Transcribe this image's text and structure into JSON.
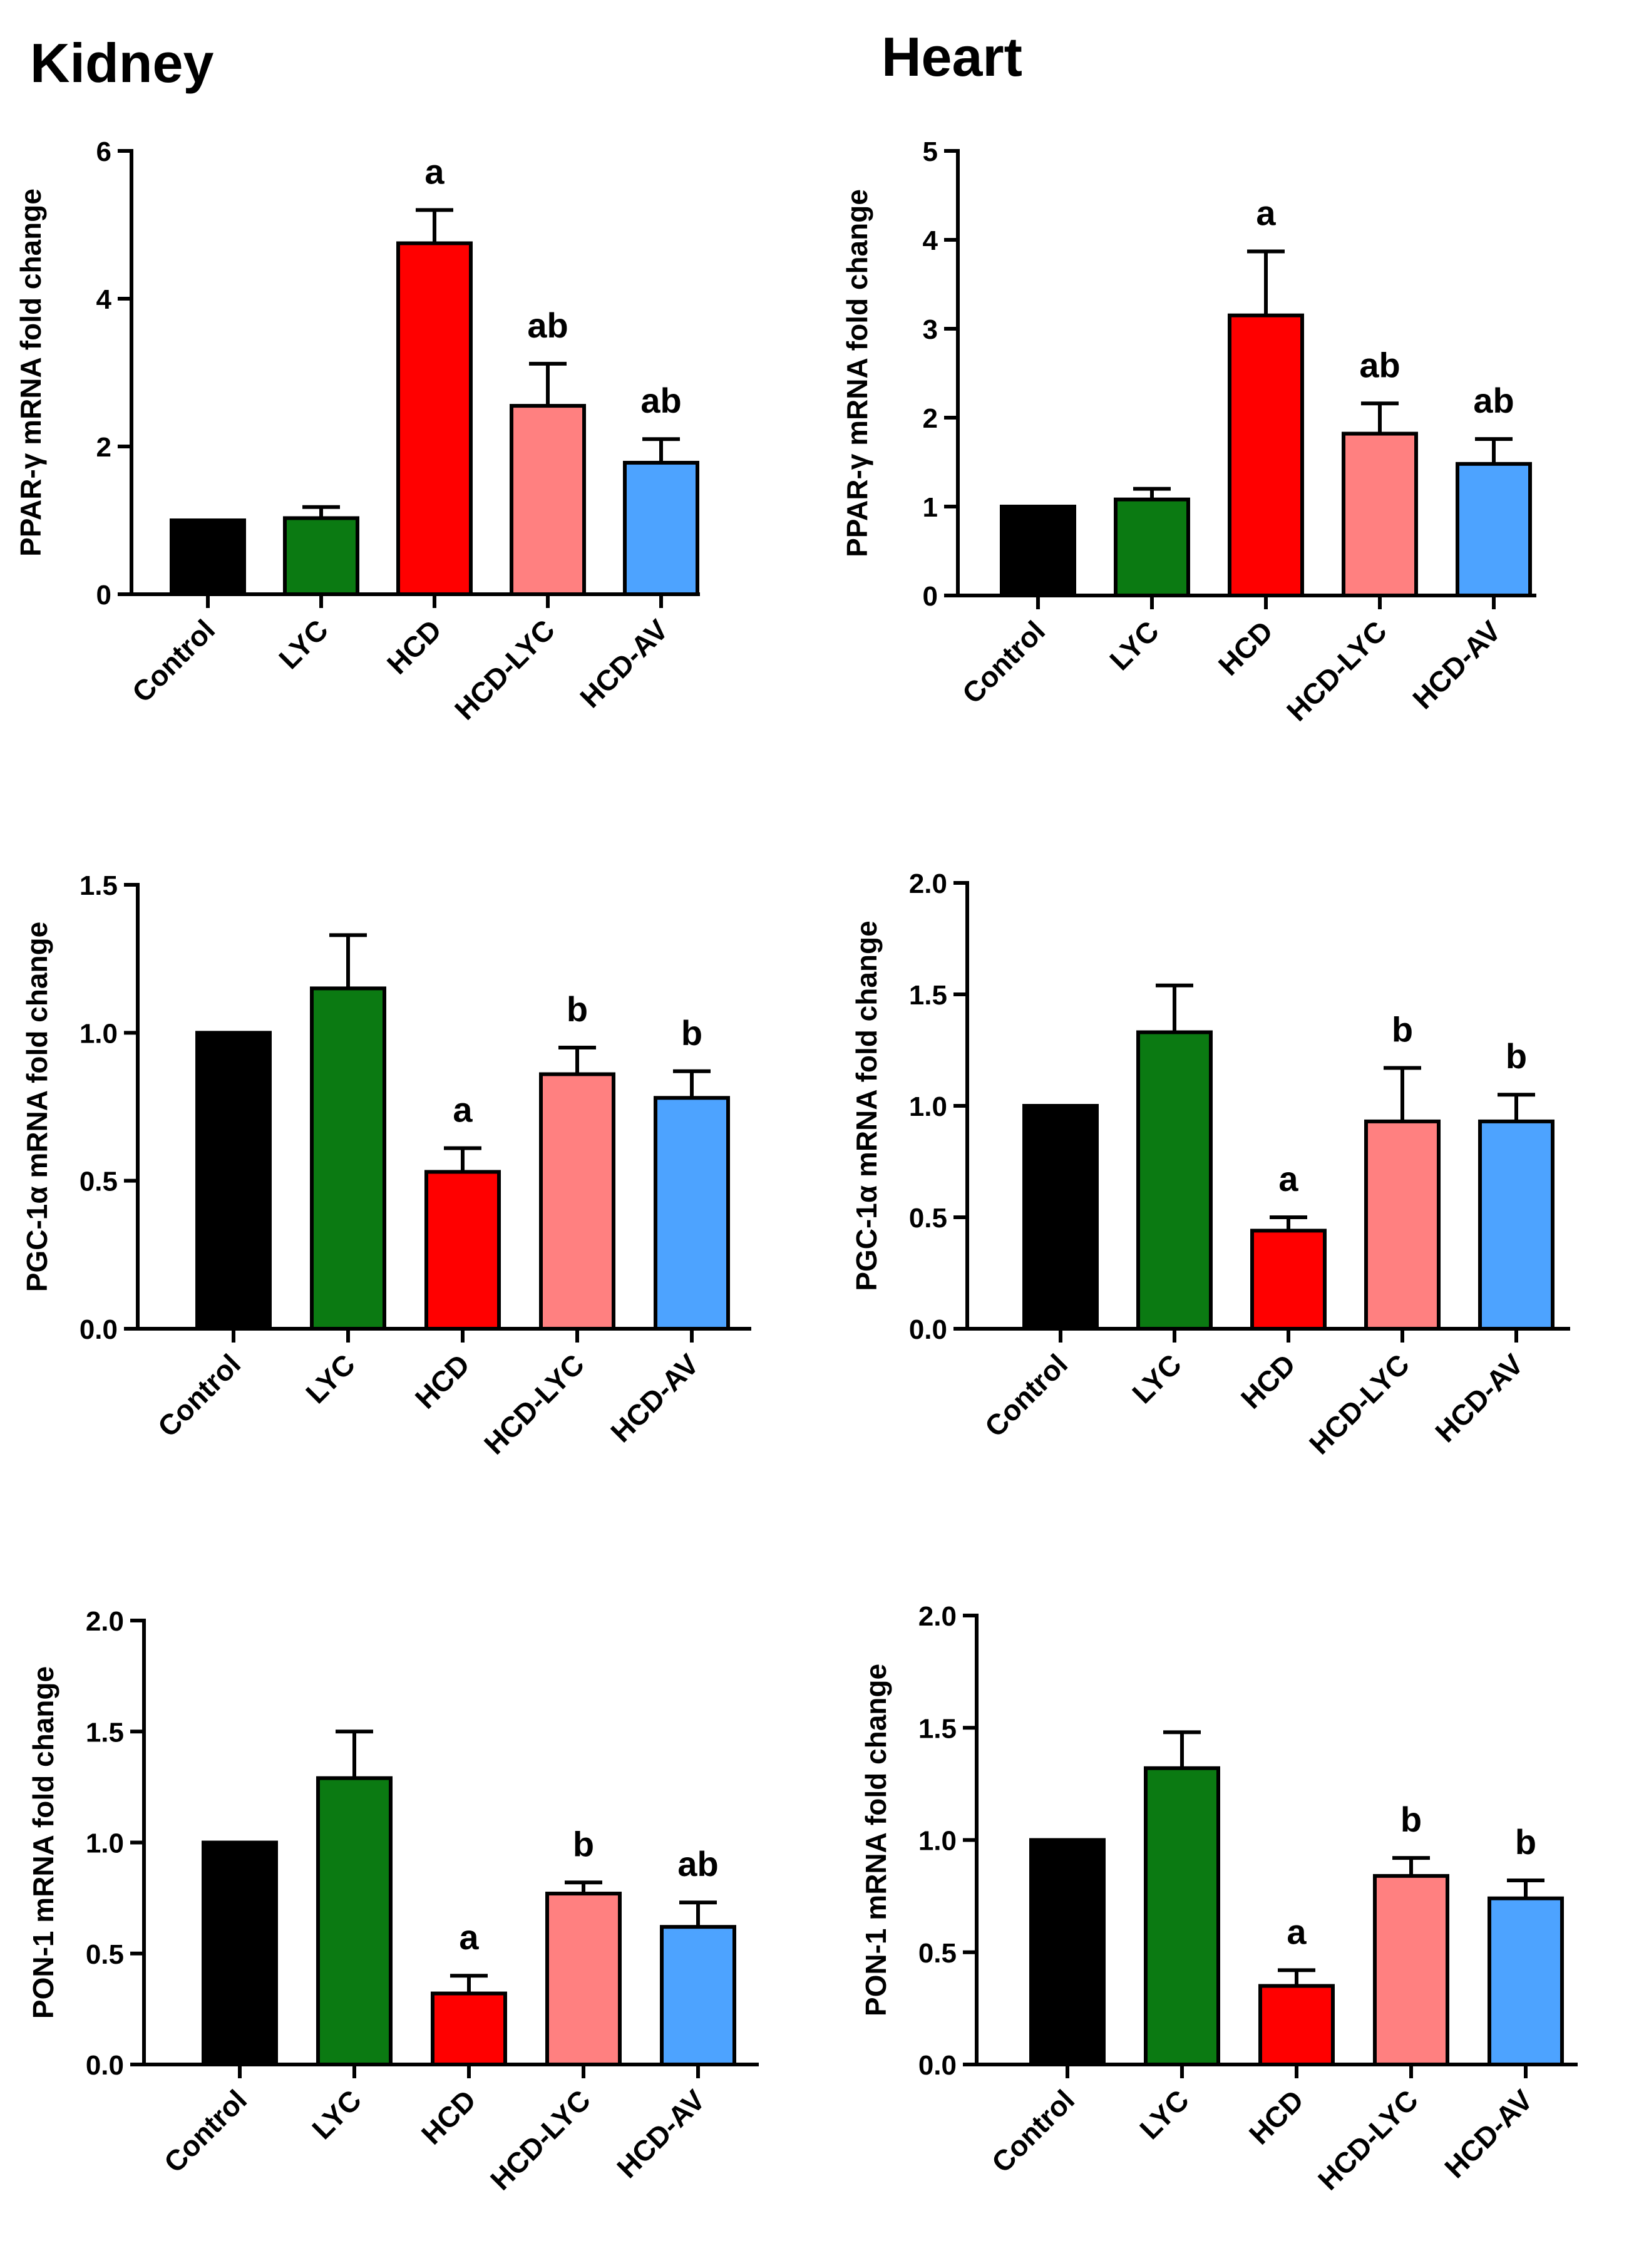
{
  "columns": [
    "Kidney",
    "Heart"
  ],
  "colors": {
    "Control": "#000000",
    "LYC": "#0b7a12",
    "HCD": "#ff0000",
    "HCD-LYC": "#ff8080",
    "HCD-AV": "#4da3ff"
  },
  "chart_data": [
    {
      "type": "bar",
      "panel": "kidney-ppar",
      "tissue": "Kidney",
      "ylabel": "PPAR-γ mRNA fold change",
      "categories": [
        "Control",
        "LYC",
        "HCD",
        "HCD-LYC",
        "HCD-AV"
      ],
      "values": [
        1.0,
        1.03,
        4.75,
        2.55,
        1.78
      ],
      "errors": [
        0,
        0.15,
        0.45,
        0.57,
        0.32
      ],
      "labels": [
        "",
        "",
        "a",
        "ab",
        "ab"
      ],
      "ylim": [
        0,
        6
      ],
      "yticks": [
        0,
        2,
        4,
        6
      ],
      "ytick_labels": [
        "0",
        "2",
        "4",
        "6"
      ]
    },
    {
      "type": "bar",
      "panel": "heart-ppar",
      "tissue": "Heart",
      "ylabel": "PPAR-γ mRNA fold change",
      "categories": [
        "Control",
        "LYC",
        "HCD",
        "HCD-LYC",
        "HCD-AV"
      ],
      "values": [
        1.0,
        1.08,
        3.15,
        1.82,
        1.48
      ],
      "errors": [
        0,
        0.12,
        0.72,
        0.34,
        0.28
      ],
      "labels": [
        "",
        "",
        "a",
        "ab",
        "ab"
      ],
      "ylim": [
        0,
        5
      ],
      "yticks": [
        0,
        1,
        2,
        3,
        4,
        5
      ],
      "ytick_labels": [
        "0",
        "1",
        "2",
        "3",
        "4",
        "5"
      ]
    },
    {
      "type": "bar",
      "panel": "kidney-pgc",
      "tissue": "Kidney",
      "ylabel": "PGC-1α mRNA fold change",
      "categories": [
        "Control",
        "LYC",
        "HCD",
        "HCD-LYC",
        "HCD-AV"
      ],
      "values": [
        1.0,
        1.15,
        0.53,
        0.86,
        0.78
      ],
      "errors": [
        0,
        0.18,
        0.08,
        0.09,
        0.09
      ],
      "labels": [
        "",
        "",
        "a",
        "b",
        "b"
      ],
      "ylim": [
        0,
        1.5
      ],
      "yticks": [
        0,
        0.5,
        1.0,
        1.5
      ],
      "ytick_labels": [
        "0.0",
        "0.5",
        "1.0",
        "1.5"
      ]
    },
    {
      "type": "bar",
      "panel": "heart-pgc",
      "tissue": "Heart",
      "ylabel": "PGC-1α mRNA fold change",
      "categories": [
        "Control",
        "LYC",
        "HCD",
        "HCD-LYC",
        "HCD-AV"
      ],
      "values": [
        1.0,
        1.33,
        0.44,
        0.93,
        0.93
      ],
      "errors": [
        0,
        0.21,
        0.06,
        0.24,
        0.12
      ],
      "labels": [
        "",
        "",
        "a",
        "b",
        "b"
      ],
      "ylim": [
        0,
        2.0
      ],
      "yticks": [
        0,
        0.5,
        1.0,
        1.5,
        2.0
      ],
      "ytick_labels": [
        "0.0",
        "0.5",
        "1.0",
        "1.5",
        "2.0"
      ]
    },
    {
      "type": "bar",
      "panel": "kidney-pon",
      "tissue": "Kidney",
      "ylabel": "PON-1 mRNA fold change",
      "categories": [
        "Control",
        "LYC",
        "HCD",
        "HCD-LYC",
        "HCD-AV"
      ],
      "values": [
        1.0,
        1.29,
        0.32,
        0.77,
        0.62
      ],
      "errors": [
        0,
        0.21,
        0.08,
        0.05,
        0.11
      ],
      "labels": [
        "",
        "",
        "a",
        "b",
        "ab"
      ],
      "ylim": [
        0,
        2.0
      ],
      "yticks": [
        0,
        0.5,
        1.0,
        1.5,
        2.0
      ],
      "ytick_labels": [
        "0.0",
        "0.5",
        "1.0",
        "1.5",
        "2.0"
      ]
    },
    {
      "type": "bar",
      "panel": "heart-pon",
      "tissue": "Heart",
      "ylabel": "PON-1 mRNA fold change",
      "categories": [
        "Control",
        "LYC",
        "HCD",
        "HCD-LYC",
        "HCD-AV"
      ],
      "values": [
        1.0,
        1.32,
        0.35,
        0.84,
        0.74
      ],
      "errors": [
        0,
        0.16,
        0.07,
        0.08,
        0.08
      ],
      "labels": [
        "",
        "",
        "a",
        "b",
        "b"
      ],
      "ylim": [
        0,
        2.0
      ],
      "yticks": [
        0,
        0.5,
        1.0,
        1.5,
        2.0
      ],
      "ytick_labels": [
        "0.0",
        "0.5",
        "1.0",
        "1.5",
        "2.0"
      ]
    }
  ]
}
